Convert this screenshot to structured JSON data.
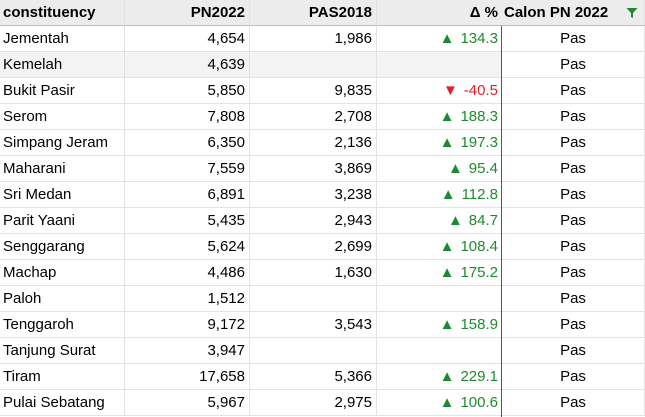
{
  "columns": [
    "constituency",
    "PN2022",
    "PAS2018",
    "Δ %",
    "Calon PN 2022"
  ],
  "colors": {
    "up": "#1e8a2e",
    "down": "#e0202a",
    "header_bg": "#ececec",
    "alt_row_bg": "#f3f3f3"
  },
  "icons": {
    "filter": "funnel-filter-icon"
  },
  "rows": [
    {
      "constituency": "Jementah",
      "pn2022": "4,654",
      "pas2018": "1,986",
      "delta": "134.3",
      "trend": "up",
      "calon": "Pas"
    },
    {
      "constituency": "Kemelah",
      "pn2022": "4,639",
      "pas2018": "",
      "delta": "",
      "trend": "",
      "calon": "Pas",
      "highlight": true
    },
    {
      "constituency": "Bukit Pasir",
      "pn2022": "5,850",
      "pas2018": "9,835",
      "delta": "-40.5",
      "trend": "down",
      "calon": "Pas"
    },
    {
      "constituency": "Serom",
      "pn2022": "7,808",
      "pas2018": "2,708",
      "delta": "188.3",
      "trend": "up",
      "calon": "Pas"
    },
    {
      "constituency": "Simpang Jeram",
      "pn2022": "6,350",
      "pas2018": "2,136",
      "delta": "197.3",
      "trend": "up",
      "calon": "Pas"
    },
    {
      "constituency": "Maharani",
      "pn2022": "7,559",
      "pas2018": "3,869",
      "delta": "95.4",
      "trend": "up",
      "calon": "Pas"
    },
    {
      "constituency": "Sri Medan",
      "pn2022": "6,891",
      "pas2018": "3,238",
      "delta": "112.8",
      "trend": "up",
      "calon": "Pas"
    },
    {
      "constituency": "Parit Yaani",
      "pn2022": "5,435",
      "pas2018": "2,943",
      "delta": "84.7",
      "trend": "up",
      "calon": "Pas"
    },
    {
      "constituency": "Senggarang",
      "pn2022": "5,624",
      "pas2018": "2,699",
      "delta": "108.4",
      "trend": "up",
      "calon": "Pas"
    },
    {
      "constituency": "Machap",
      "pn2022": "4,486",
      "pas2018": "1,630",
      "delta": "175.2",
      "trend": "up",
      "calon": "Pas"
    },
    {
      "constituency": "Paloh",
      "pn2022": "1,512",
      "pas2018": "",
      "delta": "",
      "trend": "",
      "calon": "Pas"
    },
    {
      "constituency": "Tenggaroh",
      "pn2022": "9,172",
      "pas2018": "3,543",
      "delta": "158.9",
      "trend": "up",
      "calon": "Pas"
    },
    {
      "constituency": "Tanjung Surat",
      "pn2022": "3,947",
      "pas2018": "",
      "delta": "",
      "trend": "",
      "calon": "Pas"
    },
    {
      "constituency": "Tiram",
      "pn2022": "17,658",
      "pas2018": "5,366",
      "delta": "229.1",
      "trend": "up",
      "calon": "Pas"
    },
    {
      "constituency": "Pulai Sebatang",
      "pn2022": "5,967",
      "pas2018": "2,975",
      "delta": "100.6",
      "trend": "up",
      "calon": "Pas"
    }
  ]
}
